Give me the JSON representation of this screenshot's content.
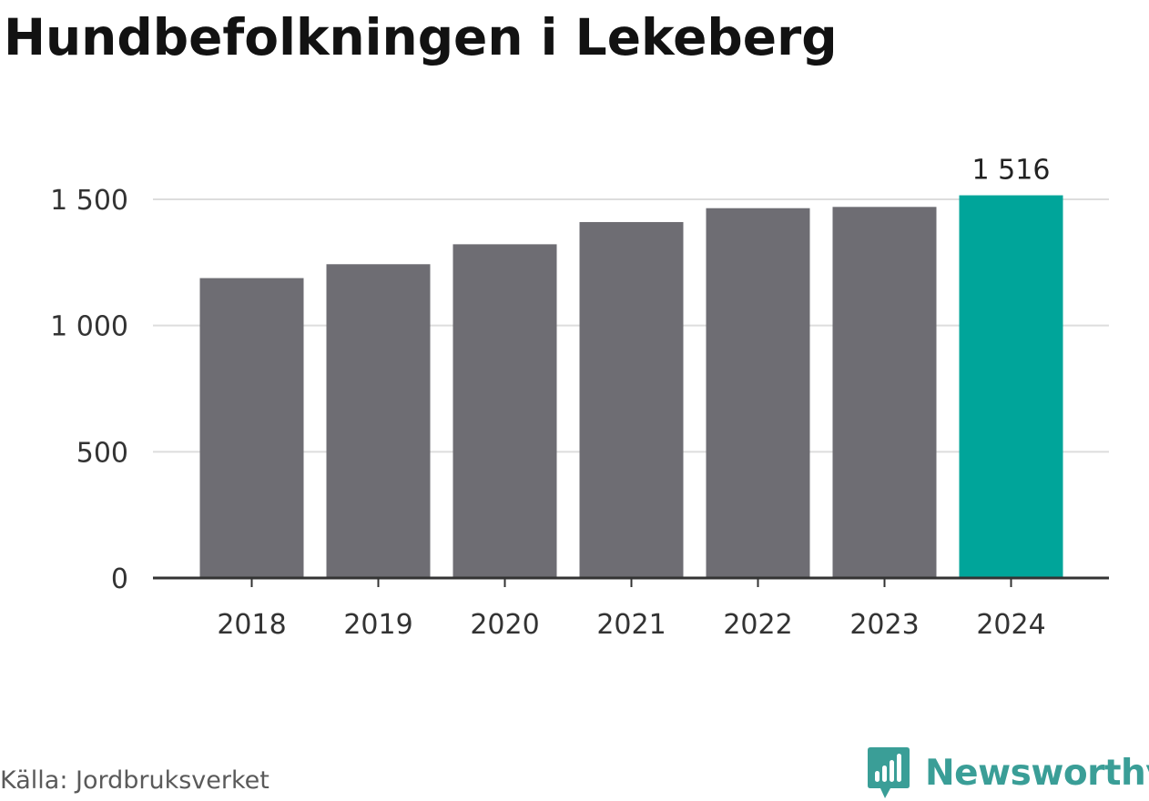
{
  "title": "Hundbefolkningen i Lekeberg",
  "source": "Källa: Jordbruksverket",
  "brand": {
    "name": "Newsworthy",
    "icon": "newsworthy-logo-icon",
    "color": "#3a9e97"
  },
  "colors": {
    "bar": "#6e6d73",
    "highlight": "#00a59a",
    "grid": "#dddddd",
    "axis": "#333333",
    "tick_text": "#333333"
  },
  "chart_data": {
    "type": "bar",
    "categories": [
      "2018",
      "2019",
      "2020",
      "2021",
      "2022",
      "2023",
      "2024"
    ],
    "values": [
      1188,
      1243,
      1322,
      1410,
      1465,
      1470,
      1516
    ],
    "highlight_index": 6,
    "data_labels": [
      {
        "index": 6,
        "text": "1 516"
      }
    ],
    "ylim": [
      0,
      1550
    ],
    "yticks": [
      0,
      500,
      1000,
      1500
    ],
    "ytick_labels": [
      "0",
      "500",
      "1 000",
      "1 500"
    ],
    "grid": true,
    "legend": "none",
    "title": "Hundbefolkningen i Lekeberg",
    "xlabel": "",
    "ylabel": ""
  }
}
